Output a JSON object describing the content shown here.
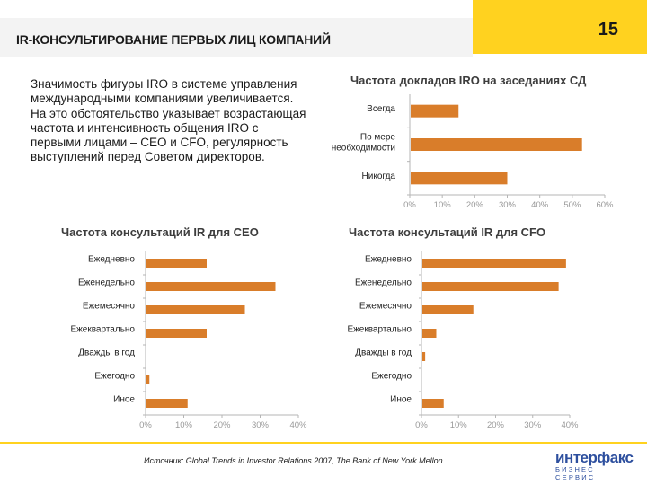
{
  "header": {
    "title": "IR-КОНСУЛЬТИРОВАНИЕ ПЕРВЫХ ЛИЦ КОМПАНИЙ",
    "page_number": "15"
  },
  "intro_text": "Значимость фигуры IRO в системе управления международными компаниями увеличивается. На это обстоятельство указывает возрастающая частота и интенсивность общения IRO с первыми лицами – CEO и CFO, регулярность выступлений перед Советом директоров.",
  "footer": {
    "source": "Источник: Global Trends in Investor Relations 2007, The Bank of New York Mellon",
    "logo_main": "интерфакс",
    "logo_sub": "БИЗНЕС СЕРВИС"
  },
  "colors": {
    "bar": "#d97d2a",
    "accent": "#ffd21f",
    "tick": "#9a9a9a"
  },
  "chart_data": [
    {
      "type": "bar",
      "orientation": "horizontal",
      "title": "Частота докладов IRO на заседаниях СД",
      "categories": [
        "Всегда",
        "По мере необходимости",
        "Никогда"
      ],
      "category_lines": [
        [
          "Всегда"
        ],
        [
          "По мере",
          "необходимости"
        ],
        [
          "Никогда"
        ]
      ],
      "values": [
        15,
        53,
        30
      ],
      "xlim": [
        0,
        60
      ],
      "ticks": [
        0,
        10,
        20,
        30,
        40,
        50,
        60
      ],
      "tick_labels": [
        "0%",
        "10%",
        "20%",
        "30%",
        "40%",
        "50%",
        "60%"
      ]
    },
    {
      "type": "bar",
      "orientation": "horizontal",
      "title": "Частота консультаций IR для CEO",
      "categories": [
        "Ежедневно",
        "Еженедельно",
        "Ежемесячно",
        "Ежеквартально",
        "Дважды в год",
        "Ежегодно",
        "Иное"
      ],
      "category_lines": [
        [
          "Ежедневно"
        ],
        [
          "Еженедельно"
        ],
        [
          "Ежемесячно"
        ],
        [
          "Ежеквартально"
        ],
        [
          "Дважды в год"
        ],
        [
          "Ежегодно"
        ],
        [
          "Иное"
        ]
      ],
      "values": [
        16,
        34,
        26,
        16,
        0,
        1,
        11
      ],
      "xlim": [
        0,
        40
      ],
      "ticks": [
        0,
        10,
        20,
        30,
        40
      ],
      "tick_labels": [
        "0%",
        "10%",
        "20%",
        "30%",
        "40%"
      ]
    },
    {
      "type": "bar",
      "orientation": "horizontal",
      "title": "Частота консультаций IR для CFO",
      "categories": [
        "Ежедневно",
        "Еженедельно",
        "Ежемесячно",
        "Ежеквартально",
        "Дважды в год",
        "Ежегодно",
        "Иное"
      ],
      "category_lines": [
        [
          "Ежедневно"
        ],
        [
          "Еженедельно"
        ],
        [
          "Ежемесячно"
        ],
        [
          "Ежеквартально"
        ],
        [
          "Дважды в год"
        ],
        [
          "Ежегодно"
        ],
        [
          "Иное"
        ]
      ],
      "values": [
        39,
        37,
        14,
        4,
        1,
        0,
        6
      ],
      "xlim": [
        0,
        40
      ],
      "ticks": [
        0,
        10,
        20,
        30,
        40
      ],
      "tick_labels": [
        "0%",
        "10%",
        "20%",
        "30%",
        "40%"
      ]
    }
  ]
}
